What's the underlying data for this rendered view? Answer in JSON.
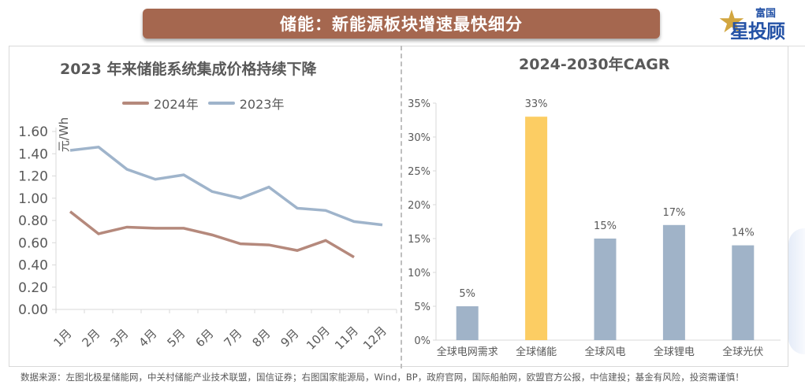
{
  "banner": {
    "title": "储能：新能源板块增速最快细分"
  },
  "logo": {
    "top_text": "富国",
    "main_text": "星投顾",
    "star_icon": "star-icon"
  },
  "colors": {
    "banner": "#a5674f",
    "series_2024": "#b5897c",
    "series_2023": "#9fb4cb",
    "bar_default": "#a0b3c8",
    "bar_highlight": "#fccd63",
    "axis": "#d9d9d9",
    "text": "#595959"
  },
  "chart_data": [
    {
      "type": "line",
      "title": "2023 年来储能系统集成价格持续下降",
      "xlabel": "",
      "ylabel": "元/Wh",
      "categories": [
        "1月",
        "2月",
        "3月",
        "4月",
        "5月",
        "6月",
        "7月",
        "8月",
        "9月",
        "10月",
        "11月",
        "12月"
      ],
      "yticks": [
        "0.00",
        "0.20",
        "0.40",
        "0.60",
        "0.80",
        "1.00",
        "1.20",
        "1.40",
        "1.60"
      ],
      "ylim": [
        0,
        1.6
      ],
      "grid": false,
      "legend": {
        "placement": "top",
        "entries": [
          "2024年",
          "2023年"
        ]
      },
      "series": [
        {
          "name": "2024年",
          "values": [
            0.88,
            0.68,
            0.74,
            0.73,
            0.73,
            0.67,
            0.59,
            0.58,
            0.53,
            0.62,
            0.47,
            null
          ]
        },
        {
          "name": "2023年",
          "values": [
            1.43,
            1.46,
            1.26,
            1.17,
            1.21,
            1.06,
            1.0,
            1.1,
            0.91,
            0.89,
            0.79,
            0.76
          ]
        }
      ]
    },
    {
      "type": "bar",
      "title": "2024-2030年CAGR",
      "xlabel": "",
      "ylabel": "",
      "categories": [
        "全球电网需求",
        "全球储能",
        "全球风电",
        "全球锂电",
        "全球光伏"
      ],
      "values": [
        5,
        33,
        15,
        17,
        14
      ],
      "data_labels": [
        "5%",
        "33%",
        "15%",
        "17%",
        "14%"
      ],
      "highlight_index": 1,
      "yticks": [
        "0%",
        "5%",
        "10%",
        "15%",
        "20%",
        "25%",
        "30%",
        "35%"
      ],
      "ylim": [
        0,
        35
      ],
      "grid": false,
      "legend": null
    }
  ],
  "footer": {
    "source": "数据来源：左图北极星储能网，中关村储能产业技术联盟，国信证券；右图国家能源局，Wind，BP，政府官网，国际船舶网，欧盟官方公报，中信建投；基金有风险，投资需谨慎！"
  }
}
